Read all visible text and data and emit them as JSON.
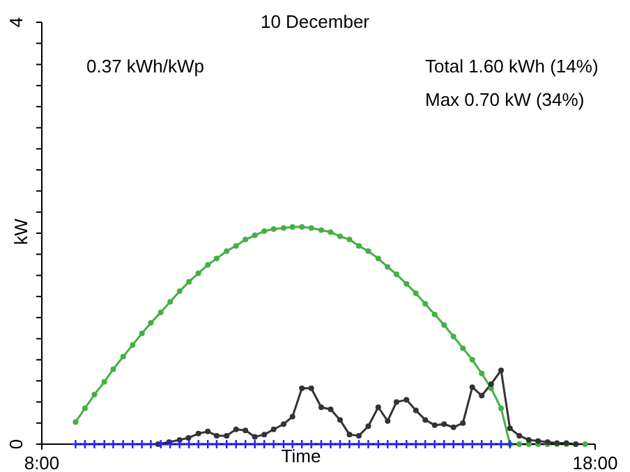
{
  "chart_data": {
    "type": "line",
    "title": "10 December",
    "xlabel": "Time",
    "ylabel": "kW",
    "annotations": [
      "0.37 kWh/kWp",
      "Total 1.60 kWh (14%)",
      "Max 0.70 kW (34%)"
    ],
    "xlim": [
      8,
      18
    ],
    "xticks": [
      {
        "value": 8,
        "label": "8:00"
      },
      {
        "value": 18,
        "label": "18:00"
      }
    ],
    "ylim": [
      0,
      4
    ],
    "yticks": [
      0,
      {
        "value": 0.2,
        "label": null
      },
      {
        "value": 0.4,
        "label": null
      },
      {
        "value": 0.6,
        "label": null
      },
      {
        "value": 0.8,
        "label": null
      },
      {
        "value": 1,
        "label": null
      },
      {
        "value": 1.2,
        "label": null
      },
      {
        "value": 1.4,
        "label": null
      },
      {
        "value": 1.6,
        "label": null
      },
      {
        "value": 1.8,
        "label": null
      },
      {
        "value": 2,
        "label": null
      },
      {
        "value": 2.2,
        "label": null
      },
      {
        "value": 2.4,
        "label": null
      },
      {
        "value": 2.6,
        "label": null
      },
      {
        "value": 2.8,
        "label": null
      },
      {
        "value": 3,
        "label": null
      },
      {
        "value": 3.2,
        "label": null
      },
      {
        "value": 3.4,
        "label": null
      },
      {
        "value": 3.6,
        "label": null
      },
      {
        "value": 3.8,
        "label": null
      },
      4
    ],
    "grid": false,
    "legend": false,
    "line_style": "solid",
    "series": [
      {
        "color": "#44b044",
        "marker": "circle",
        "x": [
          8.61,
          8.78,
          8.95,
          9.13,
          9.29,
          9.47,
          9.64,
          9.81,
          9.97,
          10.15,
          10.32,
          10.49,
          10.66,
          10.83,
          11.0,
          11.16,
          11.34,
          11.51,
          11.68,
          11.85,
          12.02,
          12.19,
          12.37,
          12.53,
          12.7,
          12.87,
          13.05,
          13.22,
          13.39,
          13.56,
          13.73,
          13.9,
          14.08,
          14.25,
          14.41,
          14.59,
          14.76,
          14.93,
          15.1,
          15.27,
          15.44,
          15.61,
          15.78,
          15.95,
          16.12,
          16.3,
          16.46,
          16.63,
          16.8,
          16.97,
          17.14,
          17.31,
          17.48,
          17.65,
          17.82
        ],
        "values": [
          0.21,
          0.34,
          0.47,
          0.59,
          0.71,
          0.83,
          0.94,
          1.05,
          1.15,
          1.25,
          1.35,
          1.45,
          1.54,
          1.62,
          1.7,
          1.76,
          1.83,
          1.88,
          1.94,
          1.98,
          2.02,
          2.04,
          2.05,
          2.06,
          2.06,
          2.05,
          2.03,
          2.01,
          1.97,
          1.94,
          1.88,
          1.83,
          1.76,
          1.68,
          1.61,
          1.52,
          1.43,
          1.33,
          1.23,
          1.13,
          1.02,
          0.91,
          0.8,
          0.67,
          0.53,
          0.34,
          0,
          0,
          0,
          0,
          0,
          0,
          0,
          0,
          0
        ]
      },
      {
        "color": "#333333",
        "marker": "circle",
        "x": [
          10.1,
          10.3,
          10.49,
          10.65,
          10.83,
          11.0,
          11.16,
          11.34,
          11.51,
          11.68,
          11.85,
          12.02,
          12.19,
          12.37,
          12.53,
          12.7,
          12.87,
          13.05,
          13.22,
          13.39,
          13.56,
          13.73,
          13.9,
          14.08,
          14.25,
          14.41,
          14.59,
          14.76,
          14.93,
          15.1,
          15.27,
          15.44,
          15.61,
          15.78,
          15.95,
          16.12,
          16.3,
          16.46,
          16.63,
          16.8,
          16.97,
          17.14,
          17.31,
          17.48,
          17.65
        ],
        "values": [
          0,
          0.02,
          0.04,
          0.06,
          0.1,
          0.12,
          0.08,
          0.08,
          0.14,
          0.13,
          0.07,
          0.09,
          0.14,
          0.19,
          0.26,
          0.53,
          0.53,
          0.35,
          0.33,
          0.23,
          0.09,
          0.08,
          0.17,
          0.35,
          0.22,
          0.4,
          0.42,
          0.32,
          0.23,
          0.18,
          0.19,
          0.16,
          0.2,
          0.54,
          0.46,
          0.57,
          0.7,
          0.15,
          0.08,
          0.04,
          0.03,
          0.02,
          0.01,
          0.01,
          0
        ]
      },
      {
        "color": "#2222ff",
        "marker": "cross",
        "x": [
          8.61,
          8.78,
          8.95,
          9.13,
          9.29,
          9.47,
          9.64,
          9.81,
          9.97,
          10.15,
          10.32,
          10.49,
          10.66,
          10.83,
          11.0,
          11.16,
          11.34,
          11.51,
          11.68,
          11.85,
          12.02,
          12.19,
          12.37,
          12.53,
          12.7,
          12.87,
          13.05,
          13.22,
          13.39,
          13.56,
          13.73,
          13.9,
          14.08,
          14.25,
          14.41,
          14.59,
          14.76,
          14.93,
          15.1,
          15.27,
          15.44,
          15.61,
          15.78,
          15.95,
          16.12,
          16.3,
          16.46
        ],
        "values": [
          0,
          0,
          0,
          0,
          0,
          0,
          0,
          0,
          0,
          0,
          0,
          0,
          0,
          0,
          0,
          0,
          0,
          0,
          0,
          0,
          0,
          0,
          0,
          0,
          0,
          0,
          0,
          0,
          0,
          0,
          0,
          0,
          0,
          0,
          0,
          0,
          0,
          0,
          0,
          0,
          0,
          0,
          0,
          0,
          0,
          0,
          0
        ]
      }
    ]
  }
}
